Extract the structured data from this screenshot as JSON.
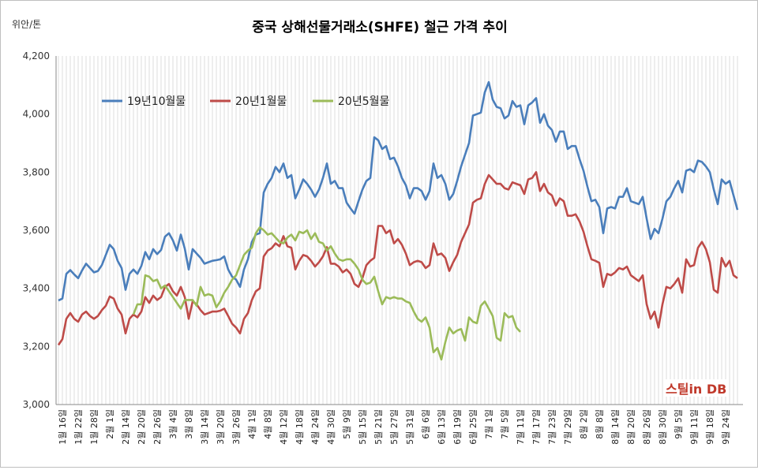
{
  "chart_data": {
    "type": "line",
    "title": "중국 상해선물거래소(SHFE) 철근 가격 추이",
    "ylabel": "위안/톤",
    "ylim": [
      3000,
      4200
    ],
    "yticks": [
      "3,000",
      "3,200",
      "3,400",
      "3,600",
      "3,800",
      "4,000",
      "4,200"
    ],
    "grid": "vertical",
    "legend_position": "top-left",
    "xtick_labels": [
      "1월 16일",
      "1월 22일",
      "1월 28일",
      "2월 1일",
      "2월 14일",
      "2월 20일",
      "2월 26일",
      "3월 4일",
      "3월 8일",
      "3월 14일",
      "3월 20일",
      "3월 26일",
      "4월 1일",
      "4월 8일",
      "4월 12일",
      "4월 18일",
      "4월 24일",
      "4월 30일",
      "5월 9일",
      "5월 15일",
      "5월 21일",
      "5월 27일",
      "5월 31일",
      "6월 6일",
      "6월 13일",
      "6월 19일",
      "6월 25일",
      "7월 1일",
      "7월 5일",
      "7월 11일",
      "7월 17일",
      "7월 23일",
      "7월 29일",
      "8월 2일",
      "8월 8일",
      "8월 14일",
      "8월 20일",
      "8월 26일",
      "8월 30일",
      "9월 5일",
      "9월 11일",
      "9월 18일",
      "9월 24일"
    ],
    "series": [
      {
        "name": "19년10월물",
        "color": "#4a7ebb",
        "values": [
          3358,
          3365,
          3450,
          3463,
          3448,
          3435,
          3462,
          3485,
          3470,
          3455,
          3460,
          3480,
          3515,
          3550,
          3535,
          3495,
          3470,
          3395,
          3450,
          3465,
          3450,
          3477,
          3525,
          3500,
          3535,
          3518,
          3532,
          3578,
          3590,
          3565,
          3530,
          3585,
          3537,
          3465,
          3535,
          3520,
          3505,
          3485,
          3490,
          3495,
          3497,
          3500,
          3510,
          3465,
          3440,
          3430,
          3405,
          3465,
          3500,
          3560,
          3585,
          3590,
          3730,
          3760,
          3780,
          3818,
          3800,
          3830,
          3780,
          3790,
          3710,
          3740,
          3775,
          3760,
          3740,
          3715,
          3740,
          3780,
          3830,
          3760,
          3770,
          3745,
          3745,
          3695,
          3675,
          3657,
          3700,
          3740,
          3770,
          3780,
          3920,
          3910,
          3880,
          3890,
          3845,
          3850,
          3820,
          3780,
          3755,
          3710,
          3745,
          3745,
          3735,
          3705,
          3735,
          3830,
          3780,
          3790,
          3760,
          3705,
          3725,
          3770,
          3820,
          3860,
          3900,
          3995,
          4000,
          4005,
          4075,
          4110,
          4050,
          4025,
          4020,
          3985,
          3995,
          4045,
          4025,
          4030,
          3965,
          4030,
          4040,
          4055,
          3970,
          4000,
          3960,
          3945,
          3905,
          3940,
          3940,
          3880,
          3890,
          3890,
          3845,
          3805,
          3750,
          3700,
          3705,
          3680,
          3590,
          3675,
          3680,
          3675,
          3715,
          3715,
          3745,
          3700,
          3695,
          3690,
          3715,
          3640,
          3570,
          3605,
          3590,
          3640,
          3700,
          3715,
          3745,
          3770,
          3730,
          3805,
          3810,
          3800,
          3840,
          3835,
          3820,
          3800,
          3740,
          3690,
          3775,
          3760,
          3770,
          3720,
          3670
        ]
      },
      {
        "name": "20년1월물",
        "color": "#be4b48",
        "values": [
          3205,
          3225,
          3295,
          3315,
          3295,
          3285,
          3310,
          3320,
          3305,
          3295,
          3305,
          3325,
          3340,
          3372,
          3365,
          3330,
          3310,
          3245,
          3295,
          3310,
          3300,
          3320,
          3370,
          3350,
          3375,
          3360,
          3370,
          3405,
          3415,
          3390,
          3375,
          3405,
          3370,
          3295,
          3355,
          3345,
          3325,
          3310,
          3315,
          3320,
          3320,
          3323,
          3330,
          3305,
          3278,
          3265,
          3245,
          3295,
          3315,
          3360,
          3390,
          3400,
          3510,
          3530,
          3538,
          3555,
          3545,
          3580,
          3545,
          3540,
          3465,
          3495,
          3515,
          3510,
          3495,
          3475,
          3490,
          3510,
          3542,
          3485,
          3485,
          3475,
          3455,
          3465,
          3450,
          3415,
          3405,
          3435,
          3480,
          3495,
          3505,
          3615,
          3615,
          3590,
          3600,
          3555,
          3570,
          3550,
          3520,
          3480,
          3490,
          3495,
          3490,
          3470,
          3480,
          3555,
          3515,
          3520,
          3505,
          3460,
          3490,
          3515,
          3560,
          3590,
          3620,
          3695,
          3705,
          3710,
          3760,
          3790,
          3775,
          3760,
          3760,
          3745,
          3740,
          3765,
          3760,
          3755,
          3725,
          3775,
          3780,
          3800,
          3735,
          3760,
          3730,
          3720,
          3685,
          3710,
          3700,
          3650,
          3650,
          3655,
          3630,
          3595,
          3545,
          3500,
          3495,
          3488,
          3405,
          3450,
          3445,
          3455,
          3470,
          3465,
          3475,
          3445,
          3435,
          3425,
          3445,
          3345,
          3295,
          3320,
          3265,
          3345,
          3405,
          3400,
          3415,
          3435,
          3385,
          3500,
          3475,
          3480,
          3540,
          3560,
          3535,
          3490,
          3395,
          3385,
          3505,
          3475,
          3495,
          3445,
          3435
        ]
      },
      {
        "name": "20년5월물",
        "color": "#9bbb59",
        "start_category": 19,
        "values": [
          3310,
          3345,
          3345,
          3445,
          3440,
          3425,
          3430,
          3400,
          3410,
          3390,
          3370,
          3350,
          3330,
          3360,
          3360,
          3360,
          3340,
          3405,
          3375,
          3380,
          3375,
          3335,
          3355,
          3385,
          3405,
          3430,
          3445,
          3480,
          3515,
          3530,
          3540,
          3590,
          3610,
          3600,
          3585,
          3590,
          3575,
          3560,
          3555,
          3575,
          3585,
          3565,
          3595,
          3590,
          3600,
          3570,
          3590,
          3560,
          3555,
          3530,
          3545,
          3520,
          3500,
          3495,
          3500,
          3500,
          3485,
          3465,
          3430,
          3415,
          3420,
          3440,
          3390,
          3345,
          3370,
          3365,
          3370,
          3365,
          3365,
          3355,
          3350,
          3320,
          3295,
          3285,
          3300,
          3265,
          3180,
          3195,
          3155,
          3215,
          3265,
          3245,
          3255,
          3260,
          3220,
          3300,
          3285,
          3280,
          3340,
          3355,
          3330,
          3305,
          3230,
          3220,
          3315,
          3300,
          3305,
          3265,
          3250
        ]
      }
    ]
  },
  "watermark": {
    "text": "스틸in DB"
  }
}
